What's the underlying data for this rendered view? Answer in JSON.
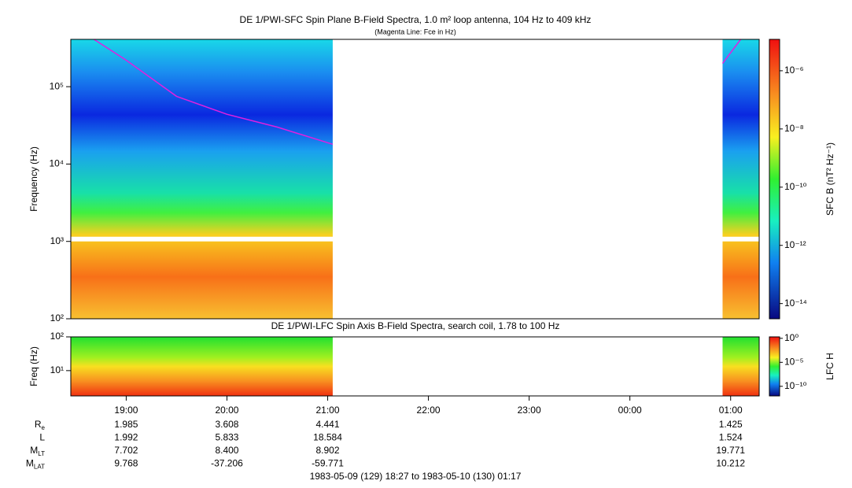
{
  "chart_data": [
    {
      "type": "spectrogram",
      "title": "DE 1/PWI-SFC  Spin Plane B-Field Spectra, 1.0 m² loop antenna, 104 Hz to 409 kHz",
      "subtitle": "(Magenta Line: Fce in Hz)",
      "y_label": "Frequency (Hz)",
      "ylog": true,
      "ylim": [
        100,
        409000
      ],
      "yticks": [
        {
          "value": 100,
          "label": "10²"
        },
        {
          "value": 1000,
          "label": "10³"
        },
        {
          "value": 10000,
          "label": "10⁴"
        },
        {
          "value": 100000,
          "label": "10⁵"
        }
      ],
      "xlim": [
        18.45,
        25.2833
      ],
      "coverage": [
        [
          18.45,
          21.05
        ],
        [
          24.92,
          25.2833
        ]
      ],
      "freq_gap": [
        1000,
        1150
      ],
      "clabel": "SFC B (nT² Hz⁻¹)",
      "clim": [
        3e-15,
        1.2e-05
      ],
      "cticks": [
        {
          "value": 1e-06,
          "label": "10⁻⁶"
        },
        {
          "value": 1e-08,
          "label": "10⁻⁸"
        },
        {
          "value": 1e-10,
          "label": "10⁻¹⁰"
        },
        {
          "value": 1e-12,
          "label": "10⁻¹²"
        },
        {
          "value": 1e-14,
          "label": "10⁻¹⁴"
        }
      ],
      "series": [
        {
          "color": "#e020e0",
          "x": [
            18.68,
            19,
            19.5,
            20,
            20.5,
            21.05,
            23,
            24.92,
            25.1
          ],
          "values": [
            409000,
            220000,
            75000,
            44000,
            30000,
            18000,
            null,
            200000,
            409000
          ]
        }
      ]
    },
    {
      "type": "spectrogram",
      "title": "DE 1/PWI-LFC  Spin Axis B-Field Spectra, search coil, 1.78 to 100 Hz",
      "y_label": "Freq (Hz)",
      "ylog": true,
      "ylim": [
        1.78,
        100
      ],
      "yticks": [
        {
          "value": 10,
          "label": "10¹"
        },
        {
          "value": 100,
          "label": "10²"
        }
      ],
      "xlim": [
        18.45,
        25.2833
      ],
      "coverage": [
        [
          18.45,
          21.05
        ],
        [
          24.92,
          25.2833
        ]
      ],
      "clabel": "LFC H",
      "clim": [
        1e-12,
        2
      ],
      "cticks": [
        {
          "value": 1,
          "label": "10⁰"
        },
        {
          "value": 1e-05,
          "label": "10⁻⁵"
        },
        {
          "value": 1e-10,
          "label": "10⁻¹⁰"
        }
      ],
      "xticks": [
        {
          "value": 19,
          "label": "19:00"
        },
        {
          "value": 20,
          "label": "20:00"
        },
        {
          "value": 21,
          "label": "21:00"
        },
        {
          "value": 22,
          "label": "22:00"
        },
        {
          "value": 23,
          "label": "23:00"
        },
        {
          "value": 24,
          "label": "00:00"
        },
        {
          "value": 25,
          "label": "01:00"
        }
      ]
    }
  ],
  "ephemeris": {
    "rows": [
      {
        "label": "R",
        "sub": "e",
        "values": [
          "1.985",
          "3.608",
          "4.441",
          null,
          null,
          null,
          "1.425"
        ]
      },
      {
        "label": "L",
        "values": [
          "1.992",
          "5.833",
          "18.584",
          null,
          null,
          null,
          "1.524"
        ]
      },
      {
        "label": "M",
        "sub": "LT",
        "values": [
          "7.702",
          "8.400",
          "8.902",
          null,
          null,
          null,
          "19.771"
        ]
      },
      {
        "label": "M",
        "sub": "LAT",
        "values": [
          "9.768",
          "-37.206",
          "-59.771",
          null,
          null,
          null,
          "10.212"
        ]
      }
    ]
  },
  "footer": "1983-05-09 (129) 18:27 to 1983-05-10 (130) 01:17"
}
